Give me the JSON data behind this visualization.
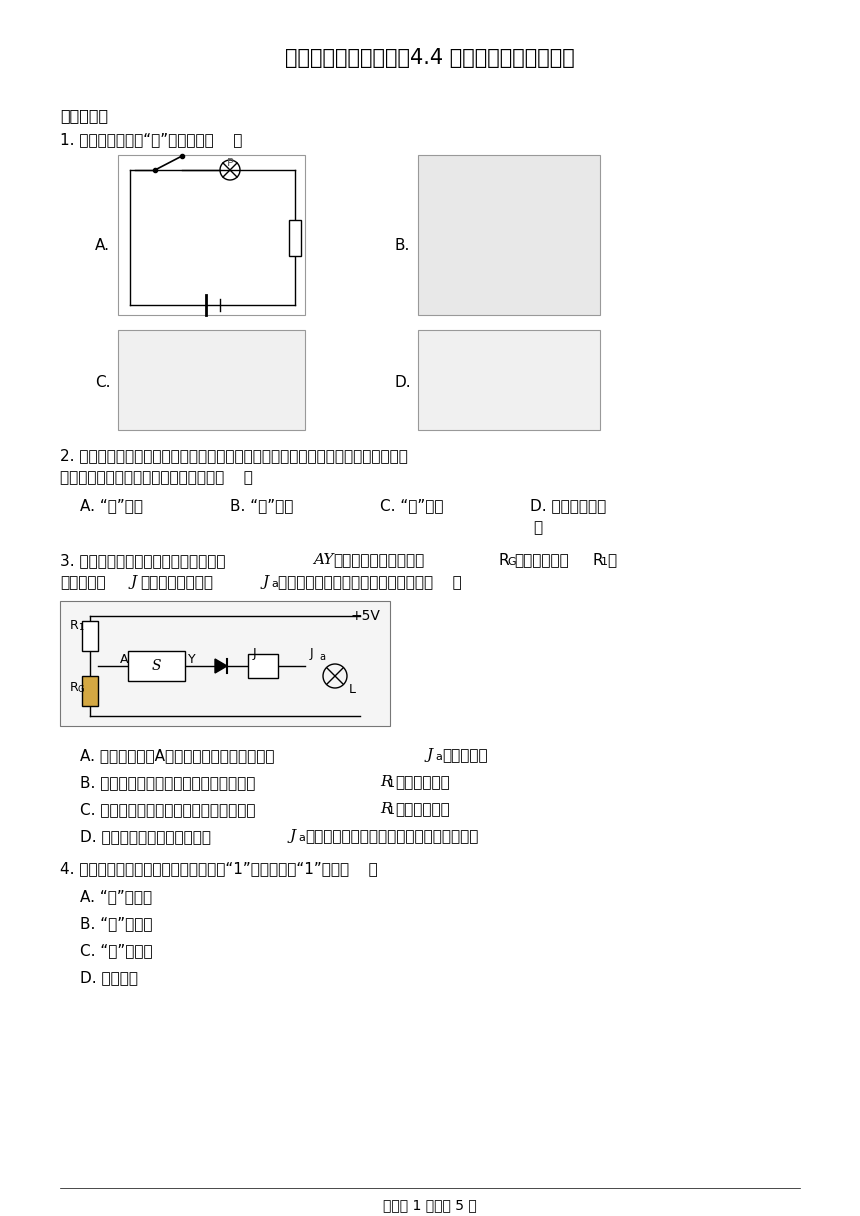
{
  "title": "同步课时精练（二十）4.4 科学用电（后附解析）",
  "bg_color": "#ffffff",
  "text_color": "#000000",
  "title_fontsize": 15,
  "body_fontsize": 11,
  "section1": "一、单选题",
  "q1": "1. 以下电路是开关“与”电路的是（    ）",
  "q2_line1": "2. 在解锁智能手机的过程中，可以采用人脸识别，也可以输入正确的密码，则要完成",
  "q2_line2": "解锁手机，上述两种方式的逻辑关系是（    ）",
  "q2_A": "A. “或”关系",
  "q2_B": "B. “与”关系",
  "q2_C": "C. “非”关系",
  "q2_D1": "D. 不存在逻辑关",
  "q2_D2": "系",
  "q3_line1a": "3. 如图所示，用小灯泡模仿光控电路，",
  "q3_line1b": "AY",
  "q3_line1c": "之间为斯密特触发器，",
  "q3_RG": "R",
  "q3_RG_sub": "G",
  "q3_line1d": "为光敏电阻，",
  "q3_R1": "R",
  "q3_R1_sub": "1",
  "q3_line1e": "为",
  "q3_line2a": "可变电阻；",
  "q3_J": "J",
  "q3_line2b": "为继电器的线圈，",
  "q3_Ja": "J",
  "q3_Ja_sub": "a",
  "q3_line2c": "为它的常开触点。下列说法错误的是（    ）",
  "q3_A1": "A. 天色变暗时，A端输入高电平，继电器吸引",
  "q3_A_Ja": "J",
  "q3_A_Ja_sub": "a",
  "q3_A2": "，路灯点亮",
  "q3_B1": "B. 要想在天色更暗时路灯才会点亮，应把",
  "q3_B_R1": "R",
  "q3_B_R1_sub": "1",
  "q3_B2": "的阻值调大些",
  "q3_C1": "C. 要想在天色更暗时路灯才会点亮，应把",
  "q3_C_R1": "R",
  "q3_C_R1_sub": "1",
  "q3_C2": "的阻值调小些",
  "q3_D1": "D. 二极管的作用是继电器释放",
  "q3_D_Ja": "J",
  "q3_D_Ja_sub": "a",
  "q3_D2": "时提供自感电流的通路，防止损坏集成电路",
  "q4": "4. 在基本逻辑电路中，当有一个输入为“1”时，输出是“1”的是（    ）",
  "q4_A": "A. “与”门电路",
  "q4_B": "B. “或”门电路",
  "q4_C": "C. “非”门电路",
  "q4_D": "D. 都不可能",
  "footer": "试卷第 1 页，共 5 页",
  "plus5v": "+5V",
  "circuit3_A_label": "A",
  "circuit3_Y_label": "Y",
  "circuit3_J_label": "J",
  "circuit3_Ja_label": "J",
  "circuit3_Ja_sub": "a",
  "circuit3_R1_label": "R",
  "circuit3_R1_sub": "1",
  "circuit3_RG_label": "R",
  "circuit3_RG_sub": "G",
  "circuit3_L_label": "L"
}
